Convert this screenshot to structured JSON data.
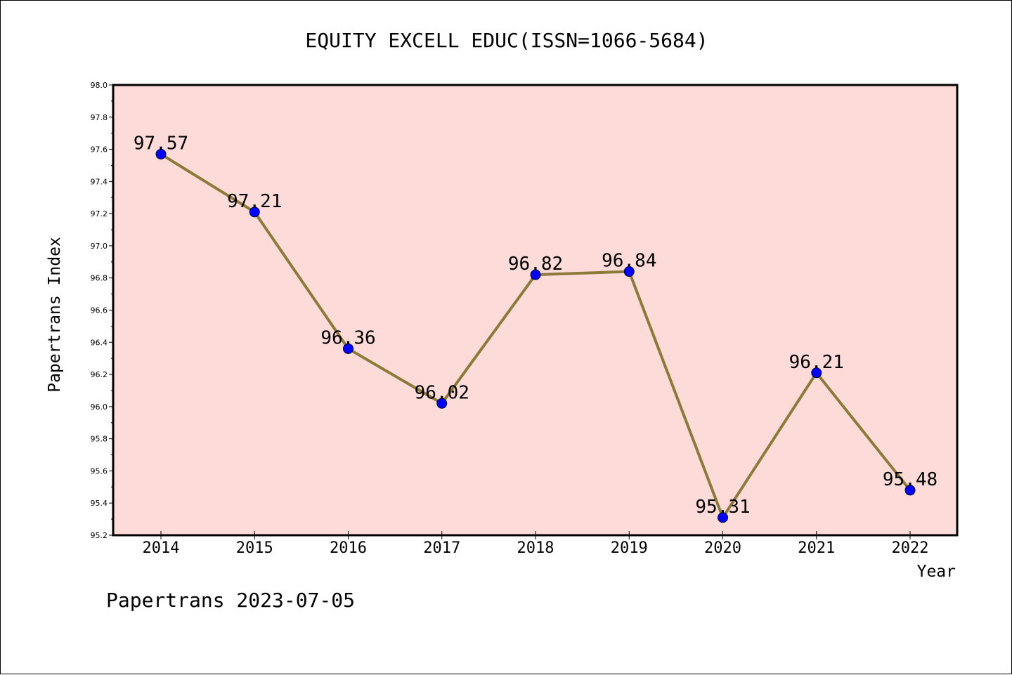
{
  "chart_data": {
    "type": "line",
    "title": "EQUITY EXCELL EDUC(ISSN=1066-5684)",
    "xlabel": "Year",
    "ylabel": "Papertrans Index",
    "categories": [
      "2014",
      "2015",
      "2016",
      "2017",
      "2018",
      "2019",
      "2020",
      "2021",
      "2022"
    ],
    "values": [
      97.57,
      97.21,
      96.36,
      96.02,
      96.82,
      96.84,
      95.31,
      96.21,
      95.48
    ],
    "data_labels": [
      "97.57",
      "97.21",
      "96.36",
      "96.02",
      "96.82",
      "96.84",
      "95.31",
      "96.21",
      "95.48"
    ],
    "ylim": [
      95.2,
      98.0
    ],
    "yticks": [
      95.2,
      95.4,
      95.6,
      95.8,
      96.0,
      96.2,
      96.4,
      96.6,
      96.8,
      97.0,
      97.2,
      97.4,
      97.6,
      97.8,
      98.0
    ],
    "ytick_labels": [
      "95.2",
      "95.4",
      "95.6",
      "95.8",
      "96.0",
      "96.2",
      "96.4",
      "96.6",
      "96.8",
      "97.0",
      "97.2",
      "97.4",
      "97.6",
      "97.8",
      "98.0"
    ],
    "grid": false,
    "colors": {
      "plot_background": "#fddbd9",
      "line": "#8c7a3a",
      "marker": "#0000ff"
    }
  },
  "footer": "Papertrans 2023-07-05"
}
